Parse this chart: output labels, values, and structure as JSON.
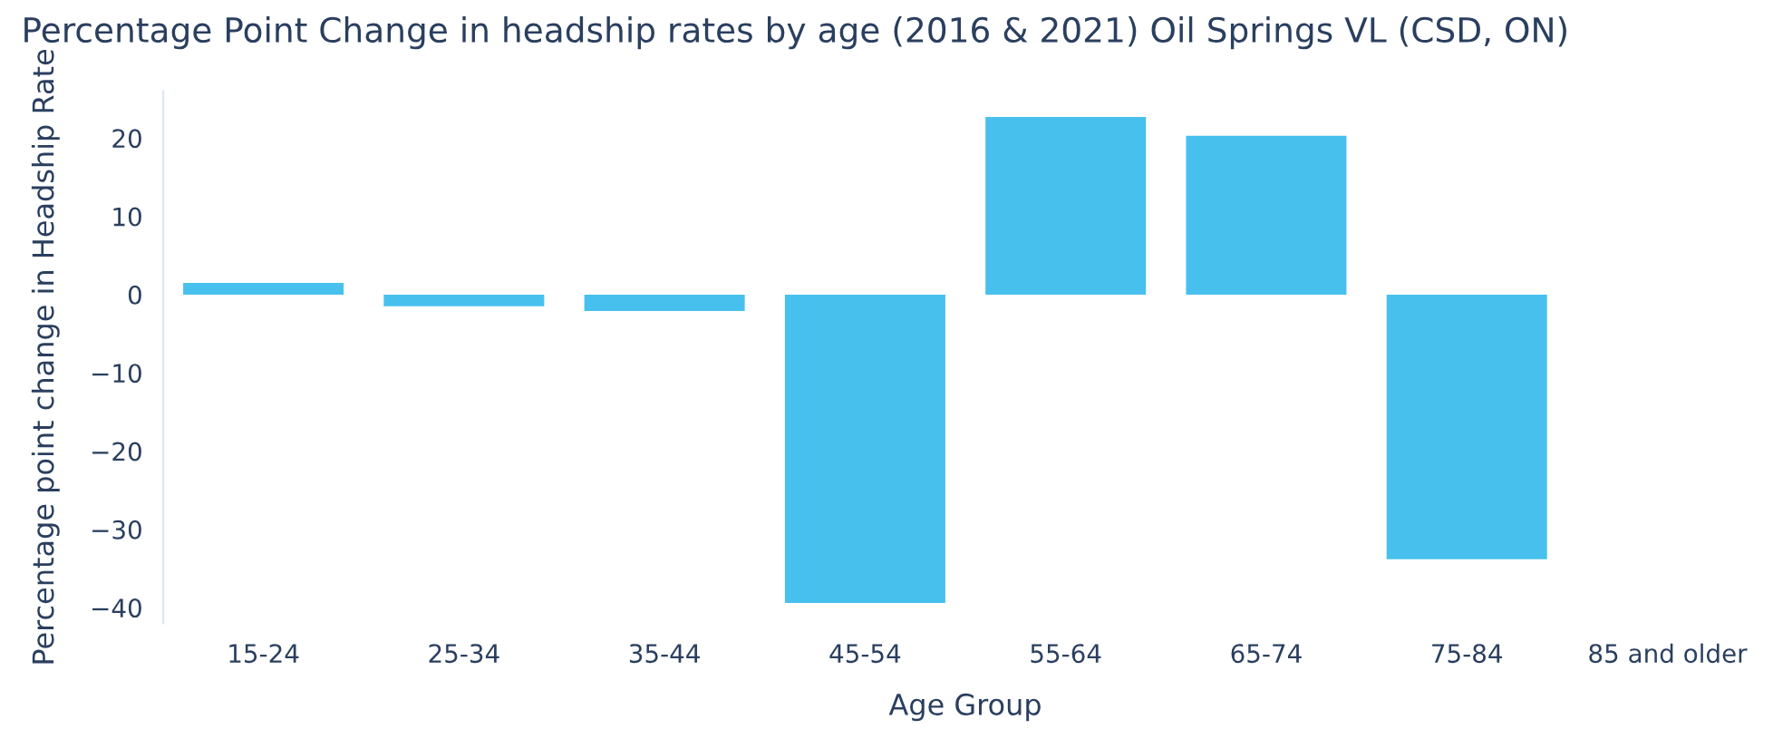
{
  "chart_data": {
    "type": "bar",
    "title": "Percentage Point Change in headship rates by age (2016 & 2021) Oil Springs VL (CSD, ON)",
    "xlabel": "Age Group",
    "ylabel": "Percentage point change in Headship Rate",
    "categories": [
      "15-24",
      "25-34",
      "35-44",
      "45-54",
      "55-64",
      "65-74",
      "75-84",
      "85 and older"
    ],
    "values": [
      1.5,
      -1.5,
      -2.1,
      -39.4,
      22.7,
      20.3,
      -33.8,
      0
    ],
    "color": "#48c0ee",
    "ylim": [
      -42,
      26
    ],
    "yticks": [
      {
        "value": -40,
        "label": "−40"
      },
      {
        "value": -30,
        "label": "−30"
      },
      {
        "value": -20,
        "label": "−20"
      },
      {
        "value": -10,
        "label": "−10"
      },
      0,
      10,
      20
    ],
    "grid": false,
    "legend": false
  }
}
